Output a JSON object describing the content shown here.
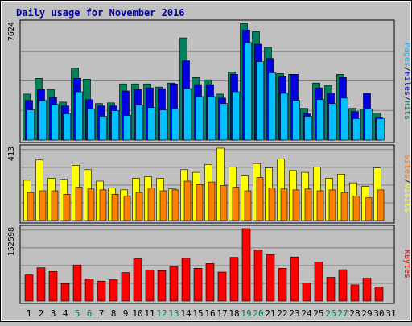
{
  "colors": {
    "background": "#c0c0c0",
    "panel_border": "#000000",
    "grid": "#808080",
    "title": "#0000aa",
    "hits": "#00805c",
    "files": "#0000e0",
    "pages": "#00c0ff",
    "visits": "#ffff00",
    "sites": "#ff8000",
    "kbytes": "#ff0000",
    "weekend_label": "#00805c",
    "weekday_label": "#000000"
  },
  "chart_data": {
    "type": "bar",
    "title": "Daily usage for November 2016",
    "categories": [
      "1",
      "2",
      "3",
      "4",
      "5",
      "6",
      "7",
      "8",
      "9",
      "10",
      "11",
      "12",
      "13",
      "14",
      "15",
      "16",
      "17",
      "18",
      "19",
      "20",
      "21",
      "22",
      "23",
      "24",
      "25",
      "26",
      "27",
      "28",
      "29",
      "30",
      "31"
    ],
    "weekend_days": [
      "5",
      "6",
      "12",
      "13",
      "19",
      "20",
      "26",
      "27"
    ],
    "panels": [
      {
        "id": "hits_files_pages",
        "max_label": "7624",
        "ylim": [
          0,
          7624
        ],
        "legend": [
          {
            "label": "Hits",
            "color_key": "hits"
          },
          {
            "label": "/",
            "color_key": "weekday_label"
          },
          {
            "label": "Files",
            "color_key": "files"
          },
          {
            "label": "/",
            "color_key": "weekday_label"
          },
          {
            "label": "Pages",
            "color_key": "pages"
          }
        ],
        "series": [
          {
            "name": "Hits",
            "color_key": "hits",
            "values": [
              2900,
              3900,
              3200,
              2400,
              4550,
              3850,
              2300,
              2350,
              3550,
              3550,
              3550,
              3350,
              3600,
              6450,
              3950,
              3800,
              2900,
              4300,
              7350,
              6850,
              5850,
              4200,
              4150,
              2000,
              3600,
              3450,
              4150,
              2000,
              1950,
              1700,
              0
            ]
          },
          {
            "name": "Files",
            "color_key": "files",
            "values": [
              2500,
              3200,
              2700,
              2150,
              3900,
              2550,
              2150,
              2150,
              3100,
              3200,
              3300,
              3250,
              3550,
              5000,
              3500,
              3500,
              2650,
              4150,
              6950,
              6050,
              5150,
              4000,
              4150,
              1650,
              3300,
              2950,
              3950,
              1800,
              2950,
              1450,
              0
            ]
          },
          {
            "name": "Pages",
            "color_key": "pages",
            "values": [
              1900,
              2500,
              2250,
              1650,
              3050,
              1950,
              1500,
              1850,
              1550,
              2200,
              2050,
              1900,
              1950,
              3250,
              2750,
              2750,
              2300,
              3050,
              6150,
              4950,
              4250,
              2950,
              2500,
              1500,
              2550,
              2300,
              2650,
              1350,
              1950,
              1350,
              0
            ]
          }
        ]
      },
      {
        "id": "visits_sites",
        "max_label": "413",
        "ylim": [
          0,
          413
        ],
        "legend": [
          {
            "label": "Visits",
            "color_key": "visits"
          },
          {
            "label": "/",
            "color_key": "weekday_label"
          },
          {
            "label": "Sites",
            "color_key": "sites"
          }
        ],
        "series": [
          {
            "name": "Visits",
            "color_key": "visits",
            "values": [
              230,
              345,
              240,
              235,
              315,
              290,
              225,
              185,
              175,
              240,
              250,
              240,
              180,
              290,
              275,
              320,
              413,
              305,
              255,
              325,
              300,
              350,
              285,
              275,
              305,
              240,
              265,
              215,
              195,
              300,
              0
            ]
          },
          {
            "name": "Sites",
            "color_key": "sites",
            "values": [
              160,
              170,
              170,
              150,
              190,
              180,
              175,
              150,
              140,
              160,
              185,
              170,
              175,
              225,
              205,
              220,
              200,
              190,
              170,
              245,
              185,
              180,
              175,
              180,
              170,
              175,
              160,
              140,
              130,
              175,
              0
            ]
          }
        ]
      },
      {
        "id": "kbytes",
        "max_label": "152598",
        "ylim": [
          0,
          152598
        ],
        "legend": [
          {
            "label": "KBytes",
            "color_key": "kbytes"
          }
        ],
        "series": [
          {
            "name": "KBytes",
            "color_key": "kbytes",
            "values": [
              55000,
              70000,
              62000,
              37000,
              76000,
              47000,
              42000,
              45000,
              60000,
              89000,
              65000,
              64000,
              73000,
              91000,
              69000,
              79000,
              61000,
              92000,
              152598,
              108000,
              98000,
              69000,
              93000,
              38000,
              82000,
              50000,
              66000,
              34000,
              48000,
              30000,
              0
            ]
          }
        ]
      }
    ]
  }
}
